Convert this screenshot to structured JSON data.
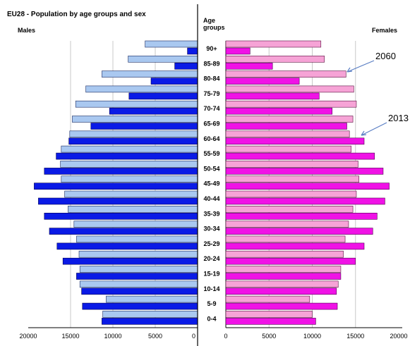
{
  "chart_data": {
    "type": "bar",
    "title": "EU28 - Population by age groups and sex",
    "left_label": "Males",
    "right_label": "Females",
    "center_header": [
      "Age",
      "groups"
    ],
    "age_groups": [
      "90+",
      "85-89",
      "80-84",
      "75-79",
      "70-74",
      "65-69",
      "60-64",
      "55-59",
      "50-54",
      "45-49",
      "40-44",
      "35-39",
      "30-34",
      "25-29",
      "20-24",
      "15-19",
      "10-14",
      "5-9",
      "0-4"
    ],
    "series": [
      {
        "name": "2060",
        "males": [
          6200,
          8200,
          11300,
          13200,
          14400,
          14800,
          15100,
          16100,
          16200,
          16100,
          15700,
          15300,
          14600,
          14300,
          14000,
          13900,
          13900,
          10800,
          11200
        ],
        "females": [
          11000,
          11400,
          13900,
          14800,
          15100,
          14700,
          14300,
          14500,
          15300,
          15400,
          15100,
          14700,
          14200,
          13800,
          13600,
          13300,
          13000,
          9700,
          10000
        ]
      },
      {
        "name": "2013",
        "males": [
          1200,
          2700,
          5500,
          8100,
          10400,
          12600,
          15200,
          16700,
          18100,
          19300,
          18800,
          18100,
          17500,
          16600,
          15900,
          14300,
          13700,
          13600,
          11300
        ],
        "females": [
          2800,
          5400,
          8500,
          10800,
          12300,
          14000,
          16000,
          17200,
          18200,
          18900,
          18400,
          17500,
          17000,
          16000,
          15000,
          13300,
          12800,
          12900,
          10400
        ]
      }
    ],
    "colors": {
      "males_2060": "#a9c8f0",
      "males_2013": "#0a1ae6",
      "females_2060": "#f6a3d6",
      "females_2013": "#f012e6"
    },
    "x_axis": {
      "males_ticks": [
        "20000",
        "15000",
        "10000",
        "5000",
        "0"
      ],
      "females_ticks": [
        "0",
        "5000",
        "10000",
        "15000",
        "20000"
      ],
      "lim": [
        0,
        20000
      ]
    },
    "annotations": [
      "2060",
      "2013"
    ],
    "grid": true
  }
}
